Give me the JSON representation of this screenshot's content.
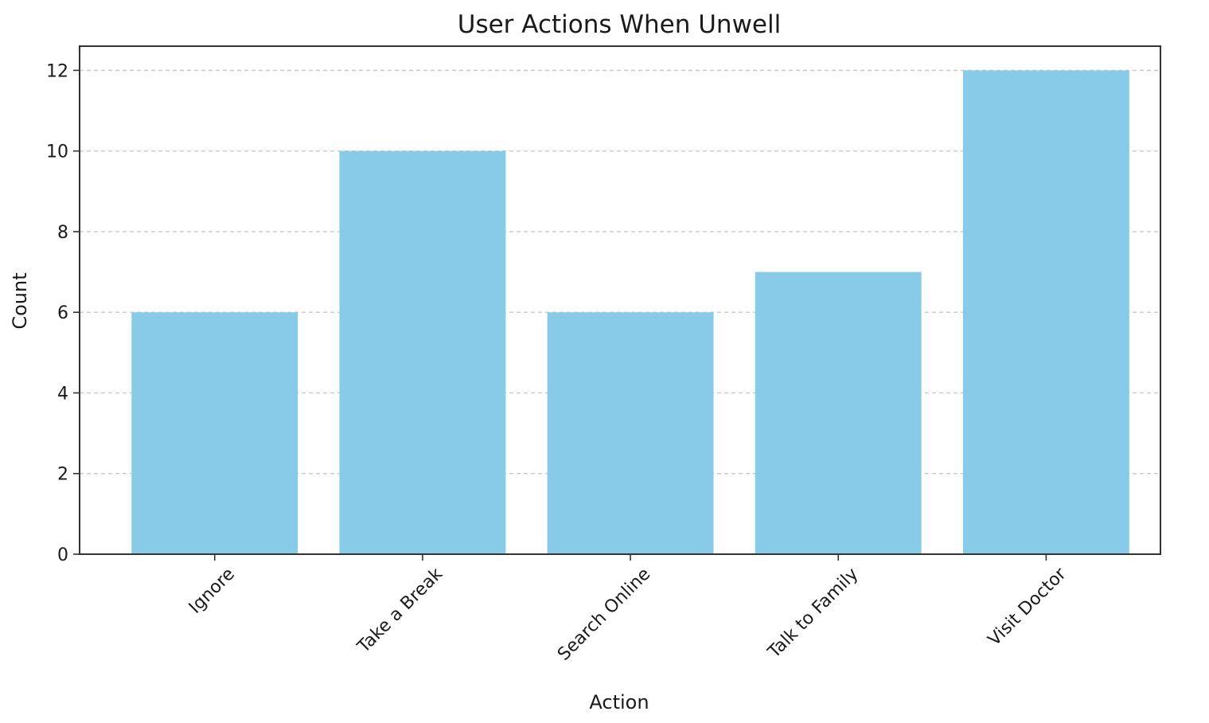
{
  "chart_data": {
    "type": "bar",
    "title": "User Actions When Unwell",
    "xlabel": "Action",
    "ylabel": "Count",
    "categories": [
      "Ignore",
      "Take a Break",
      "Search Online",
      "Talk to Family",
      "Visit Doctor"
    ],
    "values": [
      6,
      10,
      6,
      7,
      12
    ],
    "ylim": [
      0,
      12.6
    ],
    "yticks": [
      "0",
      "2",
      "4",
      "6",
      "8",
      "10",
      "12"
    ],
    "grid": "y-dashed",
    "legend": "none",
    "bar_color": "#87CBE8"
  }
}
